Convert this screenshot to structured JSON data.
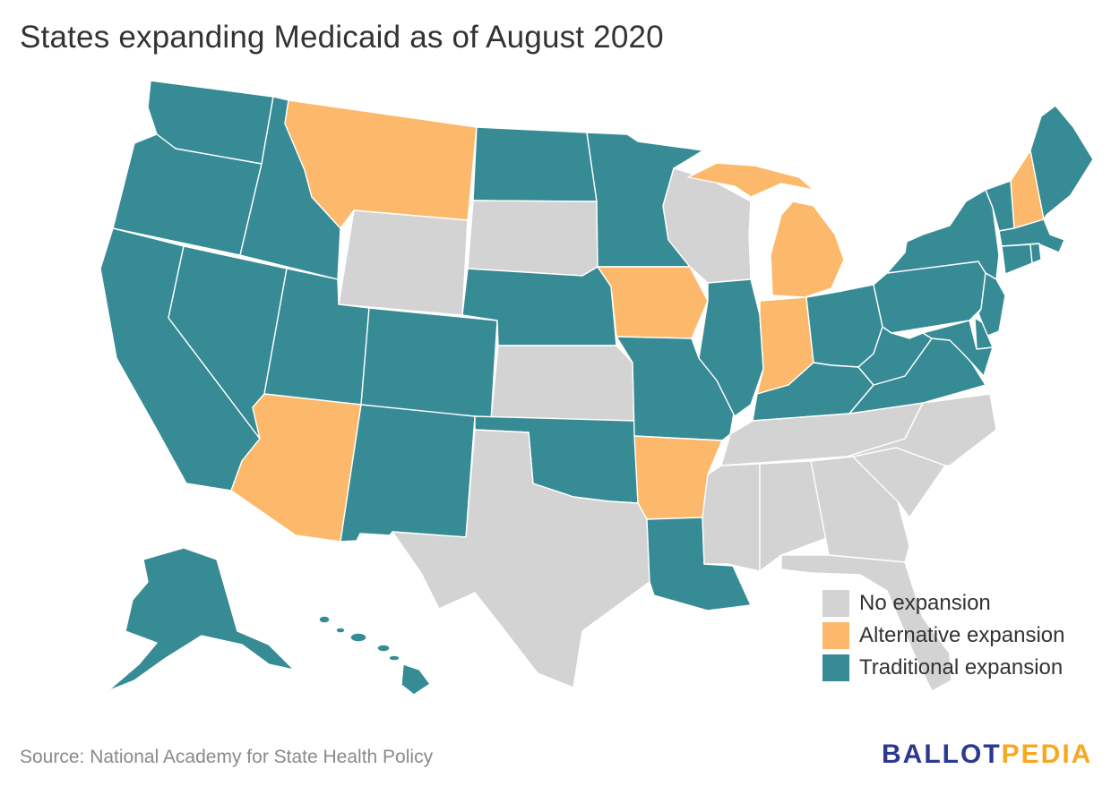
{
  "title": "States expanding Medicaid as of August 2020",
  "colors": {
    "none": "#d3d3d3",
    "alternative": "#fdb96b",
    "traditional": "#368b95"
  },
  "legend": [
    {
      "key": "none",
      "label": "No expansion"
    },
    {
      "key": "alternative",
      "label": "Alternative expansion"
    },
    {
      "key": "traditional",
      "label": "Traditional expansion"
    }
  ],
  "states": {
    "WA": "traditional",
    "OR": "traditional",
    "CA": "traditional",
    "NV": "traditional",
    "ID": "traditional",
    "MT": "alternative",
    "WY": "none",
    "UT": "traditional",
    "AZ": "alternative",
    "CO": "traditional",
    "NM": "traditional",
    "ND": "traditional",
    "SD": "none",
    "NE": "traditional",
    "KS": "none",
    "OK": "traditional",
    "TX": "none",
    "MN": "traditional",
    "IA": "alternative",
    "MO": "traditional",
    "AR": "alternative",
    "LA": "traditional",
    "WI": "none",
    "IL": "traditional",
    "MI": "alternative",
    "IN": "alternative",
    "OH": "traditional",
    "KY": "traditional",
    "TN": "none",
    "MS": "none",
    "AL": "none",
    "GA": "none",
    "FL": "none",
    "SC": "none",
    "NC": "none",
    "VA": "traditional",
    "WV": "traditional",
    "PA": "traditional",
    "NY": "traditional",
    "VT": "traditional",
    "NH": "alternative",
    "ME": "traditional",
    "MA": "traditional",
    "RI": "traditional",
    "CT": "traditional",
    "NJ": "traditional",
    "DE": "traditional",
    "MD": "traditional",
    "AK": "traditional",
    "HI": "traditional"
  },
  "source": "Source: National Academy for State Health Policy",
  "logo": {
    "part1": "BALLOT",
    "part2": "PEDIA",
    "color1": "#2b3990",
    "color2": "#f7a823"
  }
}
